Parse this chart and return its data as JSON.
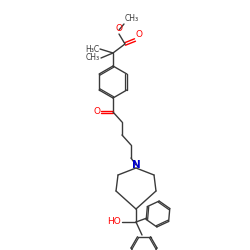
{
  "bg_color": "#ffffff",
  "bond_color": "#3a3a3a",
  "bond_color_O": "#ff0000",
  "bond_color_N": "#0000cc",
  "bond_width": 1.0,
  "font_size_atom": 6.5,
  "font_size_label": 5.5,
  "figsize": [
    2.5,
    2.5
  ],
  "dpi": 100,
  "xlim": [
    0,
    250
  ],
  "ylim": [
    0,
    250
  ]
}
